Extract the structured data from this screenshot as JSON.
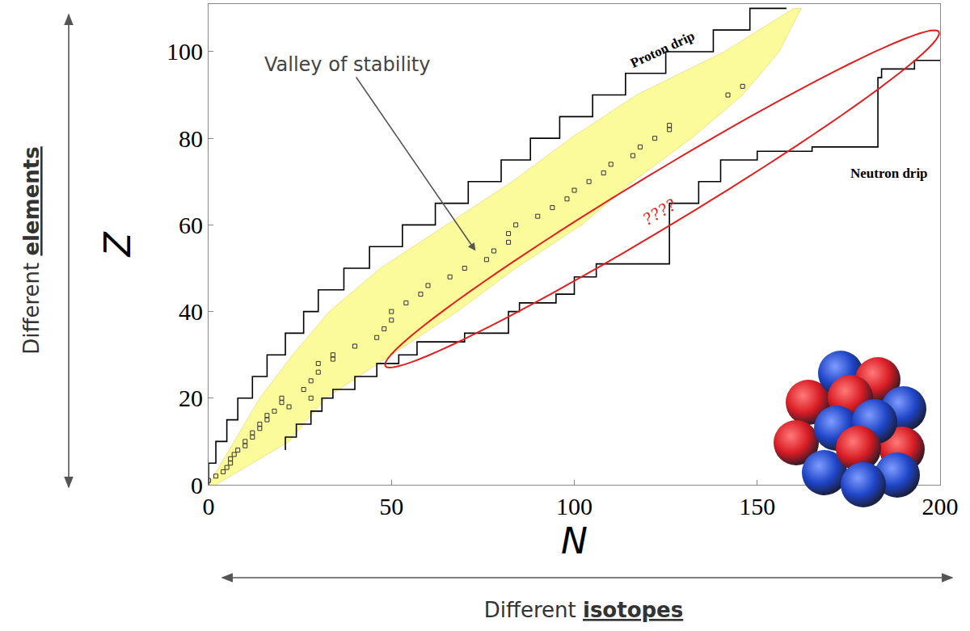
{
  "chart_data": {
    "type": "scatter",
    "xlabel": "N",
    "ylabel": "Z",
    "xlim": [
      0,
      200
    ],
    "ylim": [
      0,
      111
    ],
    "xticks": [
      0,
      50,
      100,
      150,
      200
    ],
    "yticks": [
      0,
      20,
      40,
      60,
      80,
      100
    ],
    "grid": false,
    "series": [
      {
        "type": "band",
        "color": "#fcfb9c",
        "z": [
          0,
          10,
          20,
          30,
          40,
          50,
          60,
          70,
          80,
          90,
          100,
          110
        ],
        "n_min": [
          0,
          7,
          14,
          23,
          33,
          47,
          65,
          83,
          99,
          117,
          141,
          160
        ],
        "n_max": [
          2,
          22,
          32,
          50,
          68,
          84,
          102,
          116,
          132,
          146,
          156,
          162
        ]
      },
      {
        "type": "scatter",
        "marker": "square-open",
        "color": "#333333",
        "x": [
          0,
          2,
          4,
          5,
          6,
          6,
          7,
          8,
          10,
          10,
          12,
          12,
          14,
          14,
          16,
          16,
          18,
          22,
          20,
          20,
          28,
          26,
          28,
          30,
          30,
          34,
          34,
          40,
          46,
          48,
          50,
          50,
          54,
          58,
          60,
          66,
          70,
          76,
          78,
          82,
          82,
          84,
          90,
          94,
          98,
          100,
          104,
          108,
          110,
          116,
          118,
          122,
          126,
          126,
          142,
          146
        ],
        "y": [
          1,
          2,
          3,
          4,
          5,
          6,
          7,
          8,
          9,
          10,
          11,
          12,
          13,
          14,
          15,
          16,
          17,
          18,
          19,
          20,
          20,
          22,
          24,
          26,
          28,
          29,
          30,
          32,
          34,
          36,
          38,
          40,
          42,
          44,
          46,
          48,
          50,
          52,
          54,
          56,
          58,
          60,
          62,
          64,
          66,
          68,
          70,
          72,
          74,
          76,
          78,
          80,
          82,
          83,
          90,
          92
        ]
      },
      {
        "name": "Proton drip",
        "type": "line",
        "line_style": "step",
        "color": "#000000",
        "x": [
          0,
          2,
          5,
          8,
          12,
          16,
          21,
          26,
          30,
          37,
          44,
          53,
          62,
          71,
          80,
          88,
          96,
          105,
          114,
          125,
          138,
          148,
          158
        ],
        "y": [
          0,
          5,
          10,
          15,
          20,
          25,
          30,
          35,
          40,
          45,
          50,
          55,
          60,
          65,
          70,
          75,
          80,
          85,
          90,
          95,
          100,
          105,
          110
        ]
      },
      {
        "name": "Neutron drip",
        "type": "line",
        "line_style": "step",
        "color": "#000000",
        "x": [
          21,
          24,
          28,
          31,
          34,
          40,
          46,
          52,
          57,
          70,
          82,
          85,
          95,
          100,
          106,
          126,
          126,
          134,
          140,
          150,
          165,
          183,
          184,
          193,
          200
        ],
        "y": [
          8,
          11,
          14,
          17,
          20,
          22,
          25,
          28,
          30,
          33,
          35,
          40,
          42,
          44,
          48,
          51,
          62,
          65,
          70,
          75,
          77,
          78,
          94,
          96,
          98
        ]
      }
    ],
    "annotations": [
      {
        "text": "Valley of stability"
      },
      {
        "text": "????",
        "color": "#e02020"
      }
    ],
    "side_labels": {
      "y": {
        "plain": "Different",
        "emphasized": "elements"
      },
      "x": {
        "plain": "Different",
        "emphasized": "isotopes"
      }
    }
  }
}
